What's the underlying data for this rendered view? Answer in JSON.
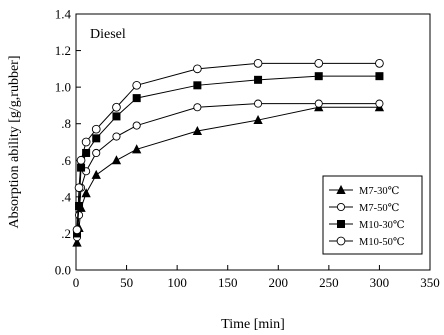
{
  "chart_data": {
    "type": "line",
    "annotation": "Diesel",
    "xlabel": "Time [min]",
    "ylabel": "Absorption ability [g/g,rubber]",
    "xlim": [
      0,
      350
    ],
    "ylim": [
      0.0,
      1.4
    ],
    "xticks": [
      0,
      50,
      100,
      150,
      200,
      250,
      300,
      350
    ],
    "yticks": [
      0.0,
      0.2,
      0.4,
      0.6,
      0.8,
      1.0,
      1.2,
      1.4
    ],
    "xtick_labels": [
      "0",
      "50",
      "100",
      "150",
      "200",
      "250",
      "300",
      "350"
    ],
    "ytick_labels": [
      "0.0",
      ".2",
      ".4",
      ".6",
      ".8",
      "1.0",
      "1.2",
      "1.4"
    ],
    "grid": false,
    "legend_position": "bottom-right",
    "series": [
      {
        "name": "M7-30℃",
        "marker": "filled-triangle",
        "x": [
          1,
          3,
          5,
          10,
          20,
          40,
          60,
          120,
          180,
          240,
          300
        ],
        "y": [
          0.15,
          0.23,
          0.34,
          0.42,
          0.52,
          0.6,
          0.66,
          0.76,
          0.82,
          0.89,
          0.89
        ]
      },
      {
        "name": "M7-50℃",
        "marker": "open-circle",
        "x": [
          1,
          3,
          5,
          10,
          20,
          40,
          60,
          120,
          180,
          240,
          300
        ],
        "y": [
          0.18,
          0.3,
          0.45,
          0.54,
          0.64,
          0.73,
          0.79,
          0.89,
          0.91,
          0.91,
          0.91
        ]
      },
      {
        "name": "M10-30℃",
        "marker": "filled-square",
        "x": [
          1,
          3,
          5,
          10,
          20,
          40,
          60,
          120,
          180,
          240,
          300
        ],
        "y": [
          0.2,
          0.35,
          0.56,
          0.64,
          0.72,
          0.84,
          0.94,
          1.01,
          1.04,
          1.06,
          1.06
        ]
      },
      {
        "name": "M10-50℃",
        "marker": "open-diamond",
        "x": [
          1,
          3,
          5,
          10,
          20,
          40,
          60,
          120,
          180,
          240,
          300
        ],
        "y": [
          0.22,
          0.45,
          0.6,
          0.7,
          0.77,
          0.89,
          1.01,
          1.1,
          1.13,
          1.13,
          1.13
        ]
      }
    ]
  }
}
